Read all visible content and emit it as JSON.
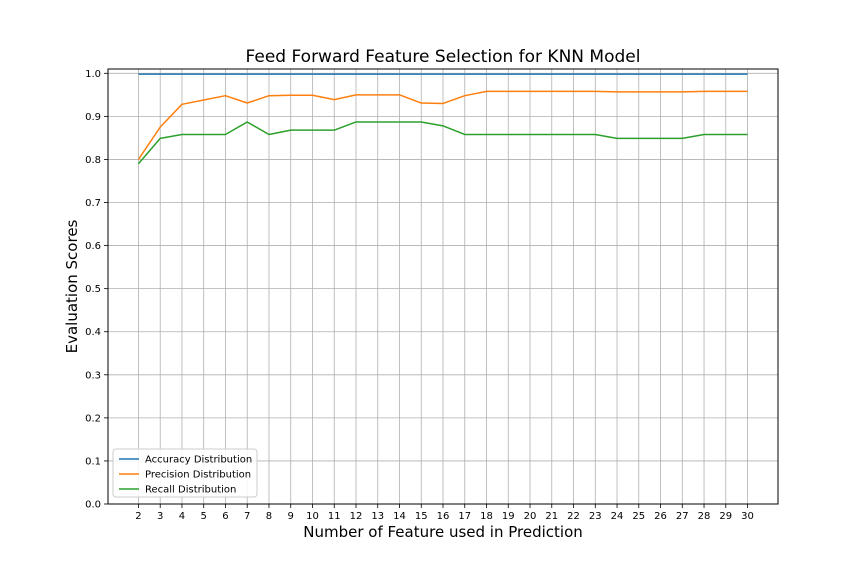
{
  "chart_data": {
    "type": "line",
    "title": "Feed Forward Feature Selection for KNN Model",
    "xlabel": "Number of Feature used in Prediction",
    "ylabel": "Evaluation Scores",
    "x": [
      2,
      3,
      4,
      5,
      6,
      7,
      8,
      9,
      10,
      11,
      12,
      13,
      14,
      15,
      16,
      17,
      18,
      19,
      20,
      21,
      22,
      23,
      24,
      25,
      26,
      27,
      28,
      29,
      30
    ],
    "xlim": [
      0.6,
      31.4
    ],
    "ylim": [
      0.0,
      1.01
    ],
    "yticks": [
      0.0,
      0.1,
      0.2,
      0.3,
      0.4,
      0.5,
      0.6,
      0.7,
      0.8,
      0.9,
      1.0
    ],
    "yticklabels": [
      "0.0",
      "0.1",
      "0.2",
      "0.3",
      "0.4",
      "0.5",
      "0.6",
      "0.7",
      "0.8",
      "0.9",
      "1.0"
    ],
    "grid": true,
    "legend_position": "lower-left",
    "series": [
      {
        "name": "Accuracy Distribution",
        "color": "#1f77b4",
        "values": [
          0.998,
          0.998,
          0.998,
          0.998,
          0.998,
          0.998,
          0.998,
          0.998,
          0.998,
          0.998,
          0.998,
          0.998,
          0.998,
          0.998,
          0.998,
          0.998,
          0.998,
          0.998,
          0.998,
          0.998,
          0.998,
          0.998,
          0.998,
          0.998,
          0.998,
          0.998,
          0.998,
          0.998,
          0.998
        ]
      },
      {
        "name": "Precision Distribution",
        "color": "#ff7f0e",
        "values": [
          0.8,
          0.875,
          0.928,
          0.938,
          0.948,
          0.931,
          0.948,
          0.949,
          0.949,
          0.939,
          0.95,
          0.95,
          0.95,
          0.931,
          0.93,
          0.948,
          0.958,
          0.958,
          0.958,
          0.958,
          0.958,
          0.958,
          0.957,
          0.957,
          0.957,
          0.957,
          0.958,
          0.958,
          0.958
        ]
      },
      {
        "name": "Recall Distribution",
        "color": "#2ca02c",
        "values": [
          0.79,
          0.849,
          0.858,
          0.858,
          0.858,
          0.887,
          0.858,
          0.868,
          0.868,
          0.868,
          0.887,
          0.887,
          0.887,
          0.887,
          0.878,
          0.858,
          0.858,
          0.858,
          0.858,
          0.858,
          0.858,
          0.858,
          0.849,
          0.849,
          0.849,
          0.849,
          0.858,
          0.858,
          0.858
        ]
      }
    ]
  }
}
